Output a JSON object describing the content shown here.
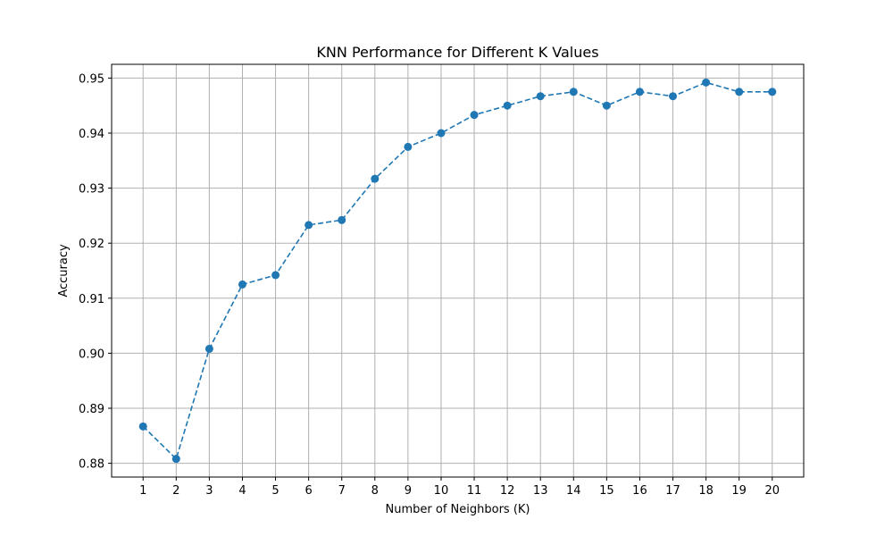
{
  "chart_data": {
    "type": "line",
    "title": "KNN Performance for Different K Values",
    "xlabel": "Number of Neighbors (K)",
    "ylabel": "Accuracy",
    "x": [
      1,
      2,
      3,
      4,
      5,
      6,
      7,
      8,
      9,
      10,
      11,
      12,
      13,
      14,
      15,
      16,
      17,
      18,
      19,
      20
    ],
    "series": [
      {
        "values": [
          0.8867,
          0.8808,
          0.9008,
          0.9125,
          0.9142,
          0.9233,
          0.9242,
          0.9317,
          0.9375,
          0.94,
          0.9433,
          0.945,
          0.9467,
          0.9475,
          0.945,
          0.9475,
          0.9467,
          0.9492,
          0.9475,
          0.9475
        ],
        "color": "#1f77b4",
        "line_style": "dashed",
        "marker": "circle"
      }
    ],
    "xticks": [
      "1",
      "2",
      "3",
      "4",
      "5",
      "6",
      "7",
      "8",
      "9",
      "10",
      "11",
      "12",
      "13",
      "14",
      "15",
      "16",
      "17",
      "18",
      "19",
      "20"
    ],
    "yticks": [
      0.88,
      0.89,
      0.9,
      0.91,
      0.92,
      0.93,
      0.94,
      0.95
    ],
    "ytick_labels": [
      "0.88",
      "0.89",
      "0.90",
      "0.91",
      "0.92",
      "0.93",
      "0.94",
      "0.95"
    ],
    "xlim": [
      0.05,
      20.95
    ],
    "ylim": [
      0.8775,
      0.9525
    ],
    "grid": true,
    "grid_color": "#b0b0b0"
  }
}
